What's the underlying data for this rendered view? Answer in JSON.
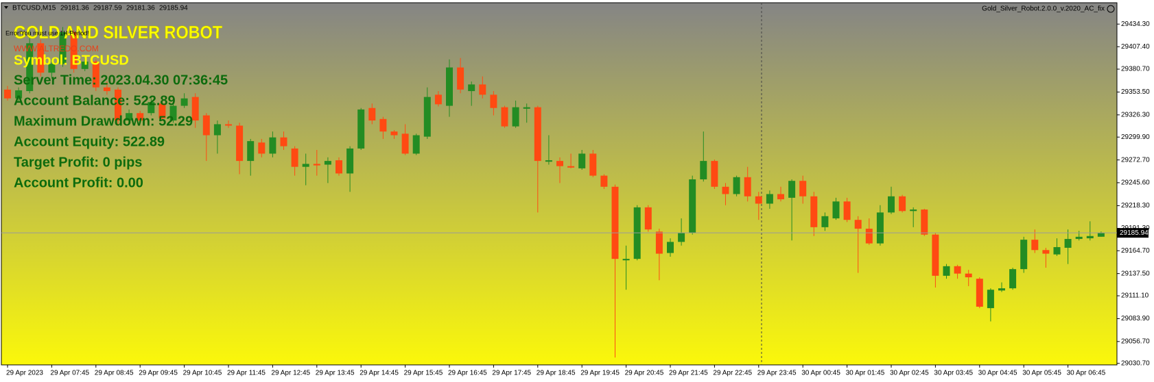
{
  "chart_data": {
    "type": "candlestick",
    "header": {
      "symbol": "BTCUSD,M15",
      "indicator": "Gold_Silver_Robot.2.0.0_v.2020_AC_fix"
    },
    "overlay": {
      "title": "GOLD AND SILVER ROBOT",
      "error": "Error!You must use 1H Period!",
      "website": "WWW.ALTREDO.COM",
      "lines": [
        "Symbol: BTCUSD",
        "Server Time: 2023.04.30 07:36:45",
        "Account Balance: 522.89",
        "Maximum Drawdown: 52.29",
        "Account Equity: 522.89",
        "Target Profit: 0 pips",
        "Account Profit: 0.00"
      ]
    },
    "categories": [
      "29 Apr 2023",
      null,
      null,
      null,
      "29 Apr 07:45",
      null,
      null,
      null,
      "29 Apr 08:45",
      null,
      null,
      null,
      "29 Apr 09:45",
      null,
      null,
      null,
      "29 Apr 10:45",
      null,
      null,
      null,
      "29 Apr 11:45",
      null,
      null,
      null,
      "29 Apr 12:45",
      null,
      null,
      null,
      "29 Apr 13:45",
      null,
      null,
      null,
      "29 Apr 14:45",
      null,
      null,
      null,
      "29 Apr 15:45",
      null,
      null,
      null,
      "29 Apr 16:45",
      null,
      null,
      null,
      "29 Apr 17:45",
      null,
      null,
      null,
      "29 Apr 18:45",
      null,
      null,
      null,
      "29 Apr 19:45",
      null,
      null,
      null,
      "29 Apr 20:45",
      null,
      null,
      null,
      "29 Apr 21:45",
      null,
      null,
      null,
      "29 Apr 22:45",
      null,
      null,
      null,
      "29 Apr 23:45",
      null,
      null,
      null,
      "30 Apr 00:45",
      null,
      null,
      null,
      "30 Apr 01:45",
      null,
      null,
      null,
      "30 Apr 02:45",
      null,
      null,
      null,
      "30 Apr 03:45",
      null,
      null,
      null,
      "30 Apr 04:45",
      null,
      null,
      null,
      "30 Apr 05:45",
      null,
      null,
      null,
      "30 Apr 06:45",
      null,
      null,
      null
    ],
    "open": [
      29356.4,
      29345.9,
      29354.6,
      29411.5,
      29376.5,
      29387.0,
      29424.7,
      29380.9,
      29389.7,
      29359.0,
      29356.4,
      29319.6,
      29328.4,
      29328.4,
      29339.8,
      29319.6,
      29337.1,
      29347.6,
      29325.7,
      29302.1,
      29315.2,
      29313.5,
      29271.5,
      29293.4,
      29280.2,
      29299.5,
      29286.3,
      29264.5,
      29268.0,
      29267.1,
      29272.3,
      29256.6,
      29286.3,
      29334.5,
      29321.4,
      29306.5,
      29303.9,
      29280.2,
      29300.4,
      29350.3,
      29337.1,
      29382.7,
      29354.6,
      29362.5,
      29350.3,
      29335.4,
      29312.6,
      29333.6,
      29335.4,
      29270.6,
      29271.5,
      29265.3,
      29262.7,
      29280.2,
      29254.0,
      29240.8,
      29153.3,
      29155.0,
      29216.3,
      29187.4,
      29162.0,
      29175.2,
      29185.7,
      29249.6,
      29271.5,
      29240.8,
      29232.1,
      29252.2,
      29229.4,
      29220.7,
      29232.1,
      29227.7,
      29247.8,
      29229.4,
      29192.7,
      29203.2,
      29223.3,
      29201.4,
      29190.9,
      29173.4,
      29210.2,
      29229.4,
      29211.9,
      29213.7,
      29183.9,
      29134.9,
      29146.3,
      29137.5,
      29131.4,
      29096.4,
      29117.4,
      29120.0,
      29142.8,
      29177.8,
      29165.5,
      29160.3,
      29168.2,
      29178.7,
      29179.5,
      29181.36
    ],
    "high": [
      29360.8,
      29359.0,
      29429.1,
      29415.9,
      29392.3,
      29430.8,
      29427.3,
      29394.0,
      29392.3,
      29366.0,
      29359.0,
      29332.7,
      29331.0,
      29345.9,
      29343.3,
      29341.5,
      29352.0,
      29352.0,
      29328.4,
      29319.6,
      29319.6,
      29317.0,
      29297.7,
      29297.7,
      29306.5,
      29306.5,
      29289.0,
      29280.2,
      29284.6,
      29275.8,
      29275.8,
      29289.0,
      29334.5,
      29339.8,
      29324.0,
      29308.2,
      29315.2,
      29303.9,
      29359.0,
      29354.6,
      29392.3,
      29394.0,
      29366.0,
      29372.1,
      29354.6,
      29337.1,
      29343.3,
      29339.8,
      29337.1,
      29302.1,
      29275.8,
      29280.2,
      29284.6,
      29284.6,
      29255.7,
      29243.4,
      29170.8,
      29218.9,
      29218.9,
      29190.9,
      29179.5,
      29203.2,
      29254.0,
      29306.5,
      29273.2,
      29245.2,
      29254.0,
      29264.5,
      29234.7,
      29236.4,
      29240.8,
      29249.6,
      29254.0,
      29234.7,
      29210.2,
      29227.7,
      29227.7,
      29205.8,
      29203.2,
      29218.9,
      29240.8,
      29231.2,
      29216.3,
      29214.6,
      29185.7,
      29148.9,
      29148.0,
      29141.9,
      29133.1,
      29120.0,
      29127.0,
      29144.5,
      29181.3,
      29190.0,
      29168.2,
      29179.5,
      29190.0,
      29188.3,
      29199.7,
      29187.59
    ],
    "low": [
      29343.3,
      29341.5,
      29352.0,
      29372.1,
      29369.5,
      29383.5,
      29376.5,
      29378.3,
      29354.6,
      29350.3,
      29315.2,
      29317.0,
      29317.0,
      29325.7,
      29319.6,
      29317.0,
      29334.5,
      29310.9,
      29271.5,
      29280.2,
      29310.9,
      29255.7,
      29254.0,
      29275.8,
      29275.8,
      29284.6,
      29254.0,
      29242.6,
      29254.0,
      29245.2,
      29254.0,
      29234.7,
      29284.6,
      29315.2,
      29297.7,
      29297.7,
      29278.5,
      29278.5,
      29297.7,
      29336.3,
      29324.0,
      29352.0,
      29337.1,
      29345.9,
      29325.7,
      29310.9,
      29310.9,
      29317.0,
      29210.2,
      29267.1,
      29245.2,
      29262.7,
      29261.0,
      29252.2,
      29238.2,
      29037.7,
      29118.3,
      29153.3,
      29187.4,
      29129.6,
      29157.6,
      29170.8,
      29183.9,
      29247.0,
      29238.2,
      29218.9,
      29229.4,
      29223.3,
      29201.4,
      29214.6,
      29223.3,
      29176.9,
      29220.7,
      29182.2,
      29188.3,
      29201.4,
      29198.8,
      29138.4,
      29171.7,
      29170.8,
      29208.4,
      29210.2,
      29192.7,
      29182.2,
      29120.9,
      29131.4,
      29131.4,
      29122.6,
      29096.4,
      29080.6,
      29115.6,
      29118.3,
      29138.4,
      29162.0,
      29144.5,
      29158.5,
      29148.9,
      29176.9,
      29176.9,
      29181.36
    ],
    "close": [
      29345.9,
      29355.5,
      29411.5,
      29376.5,
      29387.0,
      29424.7,
      29380.9,
      29389.7,
      29359.0,
      29354.6,
      29319.6,
      29328.4,
      29319.6,
      29341.5,
      29322.2,
      29337.1,
      29345.9,
      29319.6,
      29302.1,
      29315.2,
      29313.5,
      29271.5,
      29295.1,
      29280.2,
      29299.5,
      29289.0,
      29264.5,
      29268.0,
      29266.2,
      29271.5,
      29256.6,
      29286.3,
      29332.7,
      29319.6,
      29306.5,
      29302.1,
      29280.2,
      29302.1,
      29347.6,
      29338.9,
      29382.7,
      29356.4,
      29362.5,
      29350.3,
      29334.5,
      29312.6,
      29335.4,
      29335.4,
      29271.5,
      29272.3,
      29265.3,
      29263.6,
      29280.2,
      29254.0,
      29240.8,
      29155.0,
      29155.0,
      29216.3,
      29190.0,
      29161.2,
      29175.2,
      29185.7,
      29249.6,
      29271.5,
      29240.8,
      29232.1,
      29252.2,
      29229.4,
      29220.7,
      29232.1,
      29225.9,
      29247.8,
      29229.4,
      29192.7,
      29205.8,
      29223.3,
      29201.4,
      29190.9,
      29173.4,
      29210.2,
      29229.4,
      29211.9,
      29213.7,
      29183.9,
      29134.9,
      29146.3,
      29137.5,
      29133.1,
      29098.1,
      29118.3,
      29120.0,
      29142.8,
      29177.8,
      29165.5,
      29161.2,
      29169.0,
      29178.7,
      29181.3,
      29182.2,
      29185.94
    ],
    "up_color": "#238c23",
    "down_color": "#ff4a12",
    "ylim": [
      29028.9,
      29459.7
    ],
    "yticks": [
      {
        "value": 29434.3,
        "label": "29434.30"
      },
      {
        "value": 29407.4,
        "label": "29407.40"
      },
      {
        "value": 29380.7,
        "label": "29380.70"
      },
      {
        "value": 29353.5,
        "label": "29353.50"
      },
      {
        "value": 29326.3,
        "label": "29326.30"
      },
      {
        "value": 29299.9,
        "label": "29299.90"
      },
      {
        "value": 29272.7,
        "label": "29272.70"
      },
      {
        "value": 29245.6,
        "label": "29245.60"
      },
      {
        "value": 29218.3,
        "label": "29218.30"
      },
      {
        "value": 29191.3,
        "label": "29191.30"
      },
      {
        "value": 29164.7,
        "label": "29164.70"
      },
      {
        "value": 29137.5,
        "label": "29137.50"
      },
      {
        "value": 29111.1,
        "label": "29111.10"
      },
      {
        "value": 29083.9,
        "label": "29083.90"
      },
      {
        "value": 29056.7,
        "label": "29056.70"
      },
      {
        "value": 29030.7,
        "label": "29030.70"
      }
    ],
    "grid": false
  }
}
